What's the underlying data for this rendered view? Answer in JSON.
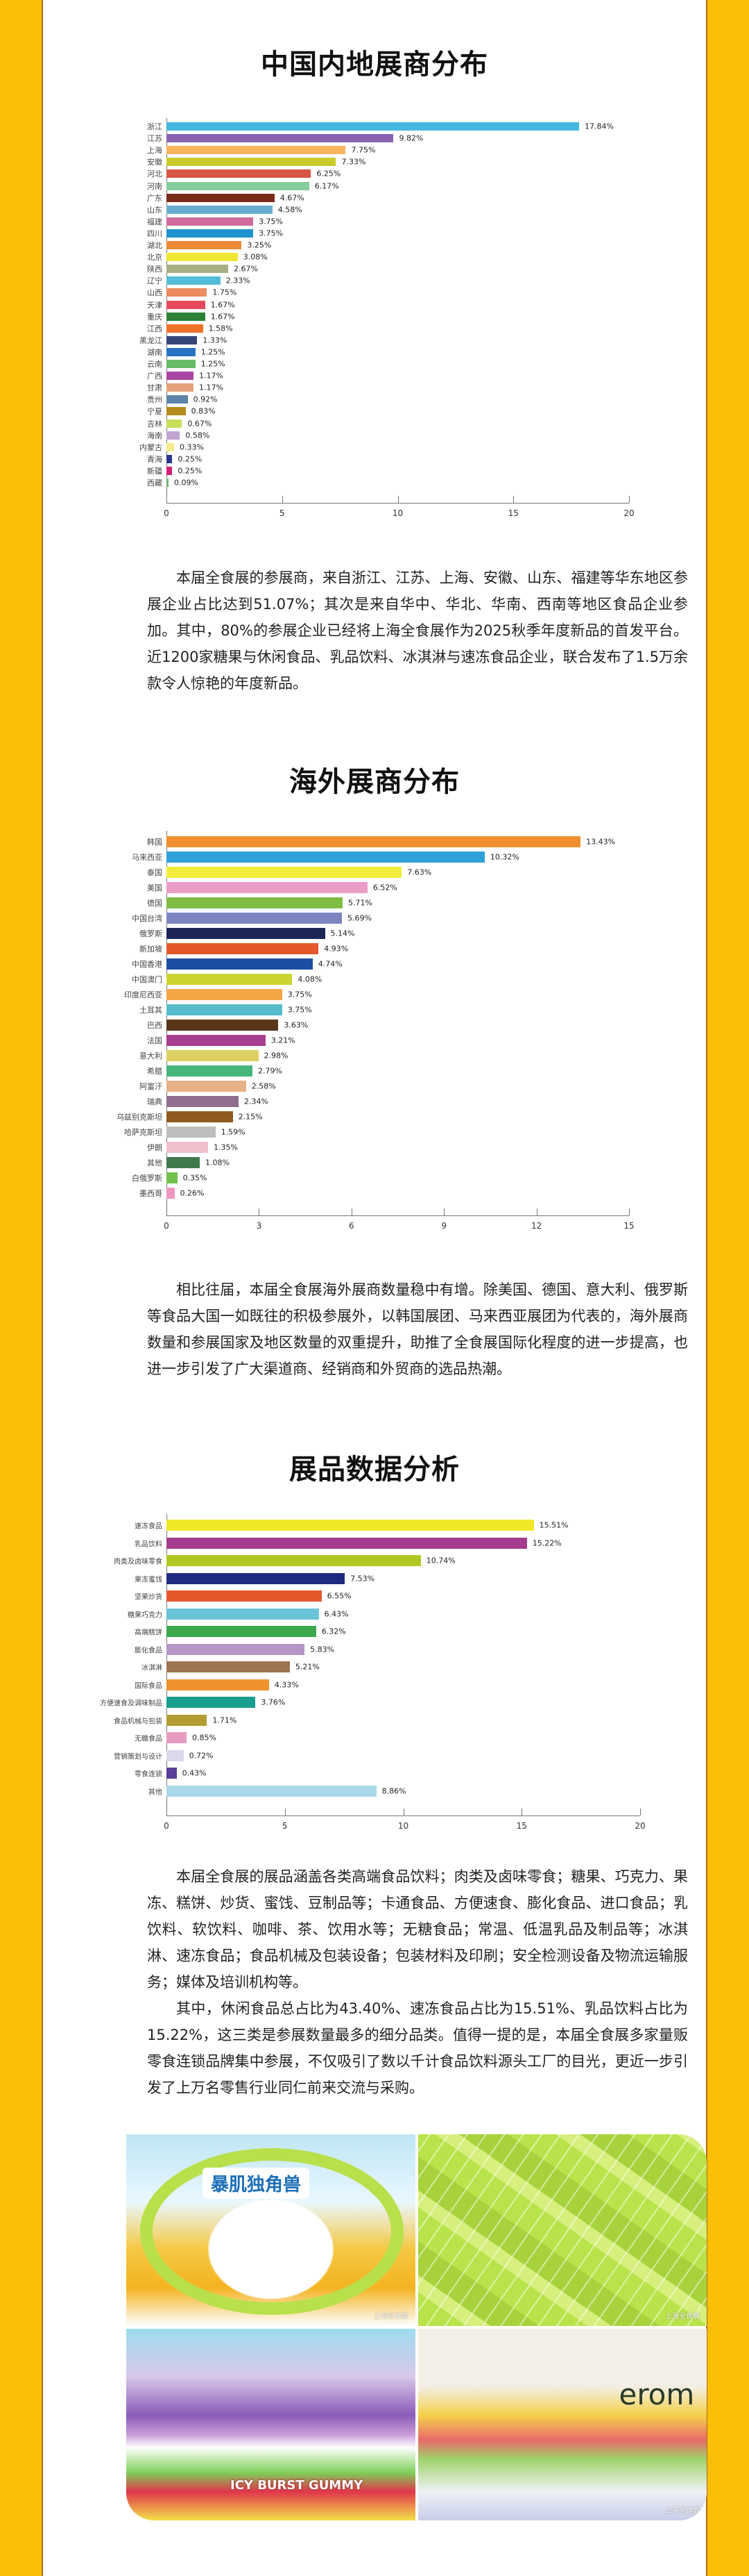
{
  "sections": {
    "mainland": {
      "title": "中国内地展商分布",
      "paragraph": "本届全食展的参展商，来自浙江、江苏、上海、安徽、山东、福建等华东地区参展企业占比达到51.07%；其次是来自华中、华北、华南、西南等地区食品企业参加。其中，80%的参展企业已经将上海全食展作为2025秋季年度新品的首发平台。近1200家糖果与休闲食品、乳品饮料、冰淇淋与速冻食品企业，联合发布了1.5万余款令人惊艳的年度新品。"
    },
    "overseas": {
      "title": "海外展商分布",
      "paragraph": "相比往届，本届全食展海外展商数量稳中有增。除美国、德国、意大利、俄罗斯等食品大国一如既往的积极参展外，以韩国展团、马来西亚展团为代表的，海外展商数量和参展国家及地区数量的双重提升，助推了全食展国际化程度的进一步提高，也进一步引发了广大渠道商、经销商和外贸商的选品热潮。"
    },
    "products": {
      "title": "展品数据分析",
      "paragraph1": "本届全食展的展品涵盖各类高端食品饮料；肉类及卤味零食；糖果、巧克力、果冻、糕饼、炒货、蜜饯、豆制品等；卡通食品、方便速食、膨化食品、进口食品；乳饮料、软饮料、咖啡、茶、饮用水等；无糖食品；常温、低温乳品及制品等；冰淇淋、速冻食品；食品机械及包装设备；包装材料及印刷；安全检测设备及物流运输服务；媒体及培训机构等。",
      "paragraph2": "其中，休闲食品总占比为43.40%、速冻食品占比为15.51%、乳品饮料占比为15.22%，这三类是参展数量最多的细分品类。值得一提的是，本届全食展多家量贩零食连锁品牌集中参展，不仅吸引了数以千计食品饮料源头工厂的目光，更近一步引发了上万名零售行业同仁前来交流与采购。"
    }
  },
  "photos": [
    {
      "brand": "暴肌独角兽",
      "caption": "上海全食展"
    },
    {
      "brand": "",
      "caption": "上海全食展"
    },
    {
      "brand": "ICY BURST GUMMY",
      "caption": ""
    },
    {
      "brand": "erom",
      "caption": "上海全食展"
    }
  ],
  "colors": {
    "frame": "#fbbf08",
    "frame_edge": "#b06d14",
    "background": "#ffffff"
  },
  "chart_data": [
    {
      "type": "bar",
      "orientation": "horizontal",
      "title": "中国内地展商分布",
      "xlabel": "",
      "ylabel": "",
      "xlim": [
        0,
        20
      ],
      "xticks": [
        0,
        5,
        10,
        15,
        20
      ],
      "grid": false,
      "value_suffix": "%",
      "categories": [
        "浙江",
        "江苏",
        "上海",
        "安徽",
        "河北",
        "河南",
        "广东",
        "山东",
        "福建",
        "四川",
        "湖北",
        "北京",
        "陕西",
        "辽宁",
        "山西",
        "天津",
        "重庆",
        "江西",
        "黑龙江",
        "湖南",
        "云南",
        "广西",
        "甘肃",
        "贵州",
        "宁夏",
        "吉林",
        "海南",
        "内蒙古",
        "青海",
        "新疆",
        "西藏"
      ],
      "values": [
        17.84,
        9.82,
        7.75,
        7.33,
        6.25,
        6.17,
        4.67,
        4.58,
        3.75,
        3.75,
        3.25,
        3.08,
        2.67,
        2.33,
        1.75,
        1.67,
        1.67,
        1.58,
        1.33,
        1.25,
        1.25,
        1.17,
        1.17,
        0.92,
        0.83,
        0.67,
        0.58,
        0.33,
        0.25,
        0.25,
        0.09
      ],
      "labels": [
        "17.84%",
        "9.82%",
        "7.75%",
        "7.33%",
        "6.25%",
        "6.17%",
        "4.67%",
        "4.58%",
        "3.75%",
        "3.75%",
        "3.25%",
        "3.08%",
        "2.67%",
        "2.33%",
        "1.75%",
        "1.67%",
        "1.67%",
        "1.58%",
        "1.33%",
        "1.25%",
        "1.25%",
        "1.17%",
        "1.17%",
        "0.92%",
        "0.83%",
        "0.67%",
        "0.58%",
        "0.33%",
        "0.25%",
        "0.25%",
        "0.09%"
      ],
      "colors": [
        "#45b8e2",
        "#8a62b0",
        "#f7b45e",
        "#c9cc2a",
        "#d85544",
        "#86cc9e",
        "#7b2a1c",
        "#68aed0",
        "#cf6b9e",
        "#1f93cf",
        "#ee8a36",
        "#efe633",
        "#a9ad82",
        "#53bcda",
        "#ed8b5f",
        "#e44a5c",
        "#2b8136",
        "#ee7227",
        "#364679",
        "#2872c2",
        "#64bb68",
        "#a847a3",
        "#e7a27b",
        "#5e83a8",
        "#b68a1e",
        "#c9df5a",
        "#c0a4d2",
        "#f4ec8c",
        "#2b3690",
        "#d51d7a",
        "#72b578"
      ]
    },
    {
      "type": "bar",
      "orientation": "horizontal",
      "title": "海外展商分布",
      "xlabel": "",
      "ylabel": "",
      "xlim": [
        0,
        15
      ],
      "xticks": [
        0,
        3,
        6,
        9,
        12,
        15
      ],
      "grid": false,
      "value_suffix": "%",
      "categories": [
        "韩国",
        "马来西亚",
        "泰国",
        "美国",
        "德国",
        "中国台湾",
        "俄罗斯",
        "新加坡",
        "中国香港",
        "中国澳门",
        "印度尼西亚",
        "土耳其",
        "巴西",
        "法国",
        "意大利",
        "希腊",
        "阿富汗",
        "瑞典",
        "乌兹别克斯坦",
        "哈萨克斯坦",
        "伊朗",
        "其他",
        "白俄罗斯",
        "墨西哥"
      ],
      "values": [
        13.43,
        10.32,
        7.63,
        6.52,
        5.71,
        5.69,
        5.14,
        4.93,
        4.74,
        4.08,
        3.75,
        3.75,
        3.63,
        3.21,
        2.98,
        2.79,
        2.58,
        2.34,
        2.15,
        1.59,
        1.35,
        1.08,
        0.35,
        0.26
      ],
      "labels": [
        "13.43%",
        "10.32%",
        "7.63%",
        "6.52%",
        "5.71%",
        "5.69%",
        "5.14%",
        "4.93%",
        "4.74%",
        "4.08%",
        "3.75%",
        "3.75%",
        "3.63%",
        "3.21%",
        "2.98%",
        "2.79%",
        "2.58%",
        "2.34%",
        "2.15%",
        "1.59%",
        "1.35%",
        "1.08%",
        "0.35%",
        "0.26%"
      ],
      "colors": [
        "#ef8f2e",
        "#2ea1d9",
        "#f1ec3a",
        "#ea9dc6",
        "#80be43",
        "#7d86c3",
        "#1d2756",
        "#e5582b",
        "#1d4ea3",
        "#cad532",
        "#f3a644",
        "#56bcc9",
        "#5a3518",
        "#a93e8f",
        "#ddd062",
        "#47b67c",
        "#e6b286",
        "#8e6d8e",
        "#8e5a1d",
        "#bebebe",
        "#f1c1cb",
        "#3f7a4d",
        "#71bf4c",
        "#ef97c2"
      ]
    },
    {
      "type": "bar",
      "orientation": "horizontal",
      "title": "展品数据分析",
      "xlabel": "",
      "ylabel": "",
      "xlim": [
        0,
        20
      ],
      "xticks": [
        0,
        5,
        10,
        15,
        20
      ],
      "grid": false,
      "value_suffix": "%",
      "categories": [
        "速冻食品",
        "乳品饮料",
        "肉类及卤味零食",
        "果冻蜜饯",
        "坚果炒货",
        "糖果巧克力",
        "高端糕饼",
        "膨化食品",
        "冰淇淋",
        "国际食品",
        "方便速食及调味制品",
        "食品机械与包装",
        "无糖食品",
        "营销策划与设计",
        "零食连锁",
        "其他"
      ],
      "values": [
        15.51,
        15.22,
        10.74,
        7.53,
        6.55,
        6.43,
        6.32,
        5.83,
        5.21,
        4.33,
        3.76,
        1.71,
        0.85,
        0.72,
        0.43,
        8.86
      ],
      "labels": [
        "15.51%",
        "15.22%",
        "10.74%",
        "7.53%",
        "6.55%",
        "6.43%",
        "6.32%",
        "5.83%",
        "5.21%",
        "4.33%",
        "3.76%",
        "1.71%",
        "0.85%",
        "0.72%",
        "0.43%",
        "8.86%"
      ],
      "colors": [
        "#f2e82a",
        "#a53b8c",
        "#b2c822",
        "#1d2a7d",
        "#e4572a",
        "#6ac4d8",
        "#3aa84d",
        "#b596c8",
        "#9e7450",
        "#ef9330",
        "#1a9e8e",
        "#b29d33",
        "#e89bc0",
        "#dcd8ea",
        "#5a3f96",
        "#a8d8ea"
      ]
    }
  ]
}
